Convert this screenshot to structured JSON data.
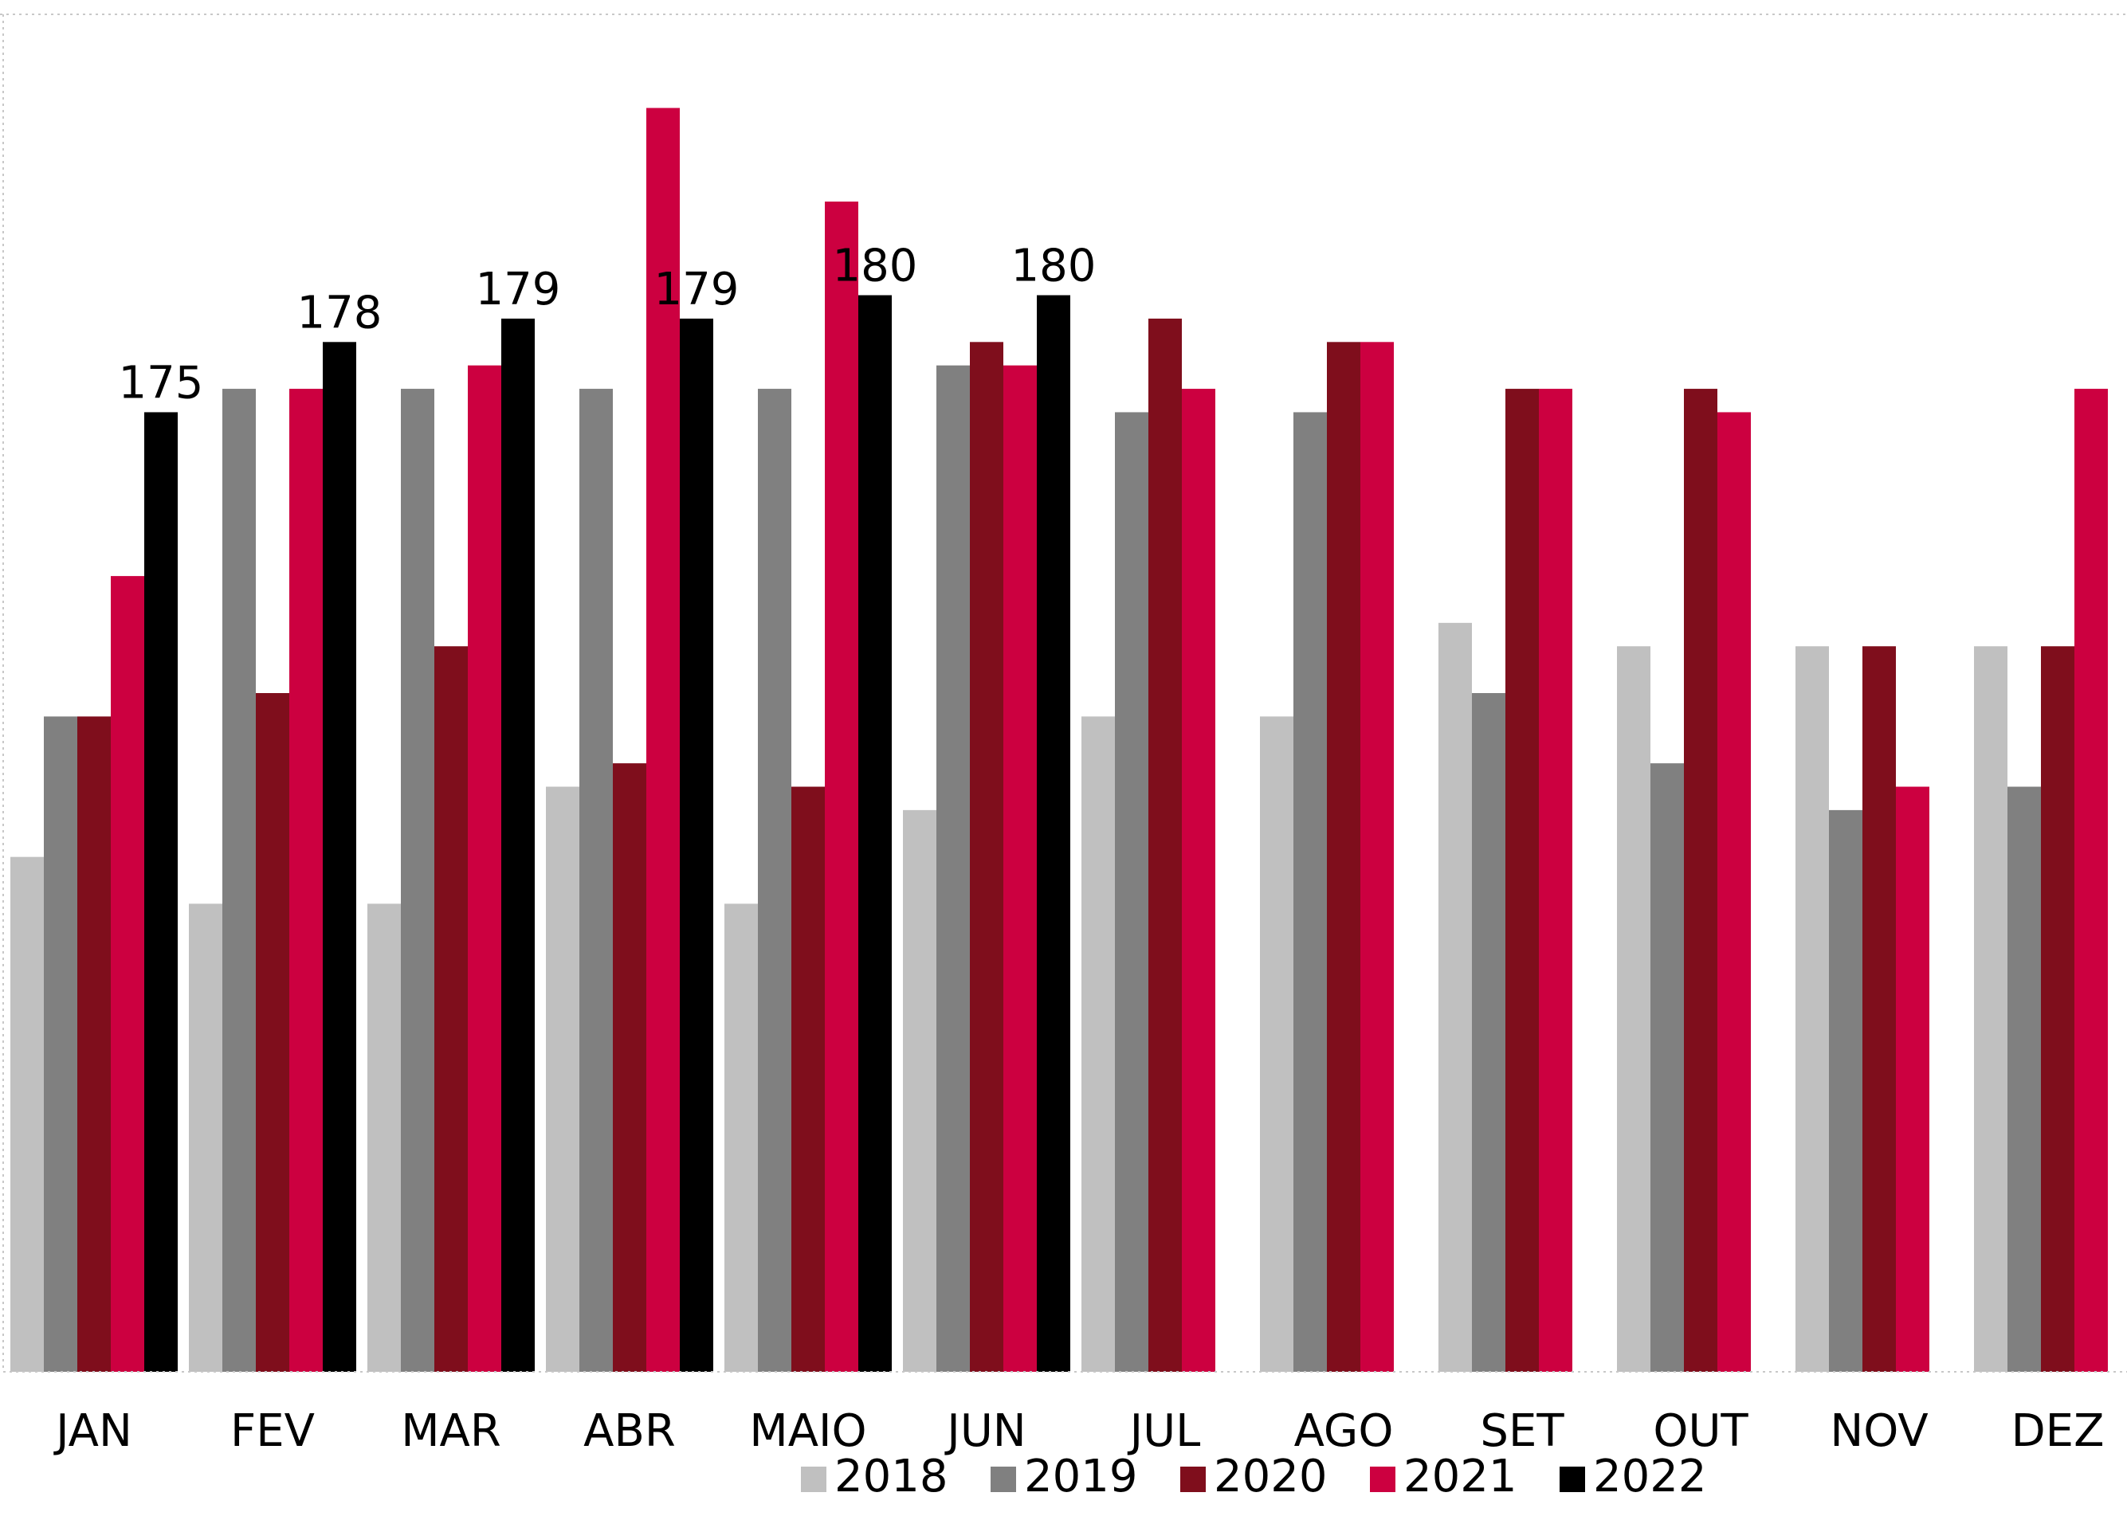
{
  "chart_data": {
    "type": "bar",
    "categories": [
      "JAN",
      "FEV",
      "MAR",
      "ABR",
      "MAIO",
      "JUN",
      "JUL",
      "AGO",
      "SET",
      "OUT",
      "NOV",
      "DEZ"
    ],
    "series": [
      {
        "name": "2018",
        "color": "#c0c0c0",
        "values": [
          156,
          154,
          154,
          159,
          154,
          158,
          162,
          162,
          166,
          165,
          165,
          165
        ]
      },
      {
        "name": "2019",
        "color": "#808080",
        "values": [
          162,
          176,
          176,
          176,
          176,
          177,
          175,
          175,
          163,
          160,
          158,
          159
        ]
      },
      {
        "name": "2020",
        "color": "#7f0e1c",
        "values": [
          162,
          163,
          165,
          160,
          159,
          178,
          179,
          178,
          176,
          176,
          165,
          165
        ]
      },
      {
        "name": "2021",
        "color": "#cc0040",
        "values": [
          168,
          176,
          177,
          188,
          184,
          177,
          176,
          178,
          176,
          175,
          159,
          176
        ]
      },
      {
        "name": "2022",
        "color": "#000000",
        "values": [
          175,
          178,
          179,
          179,
          180,
          180,
          null,
          null,
          null,
          null,
          null,
          null
        ]
      }
    ],
    "data_labels": {
      "series": "2022",
      "labels": [
        "175",
        "178",
        "179",
        "179",
        "180",
        "180"
      ]
    },
    "ylim": [
      134,
      192
    ],
    "y_axis_visible": false,
    "grid": false,
    "legend_position": "bottom-right",
    "title": "",
    "xlabel": "",
    "ylabel": ""
  }
}
